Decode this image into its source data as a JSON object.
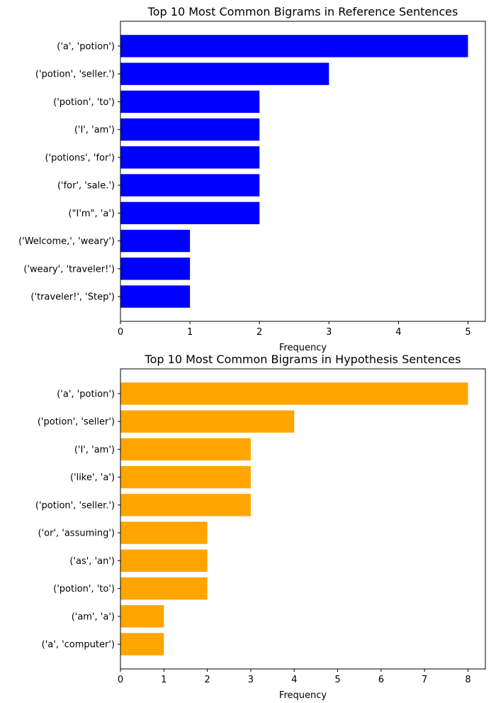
{
  "chart_data": [
    {
      "type": "bar",
      "orientation": "horizontal",
      "title": "Top 10 Most Common Bigrams in Reference Sentences",
      "xlabel": "Frequency",
      "ylabel": "",
      "color": "#0000ff",
      "xlim": [
        0,
        5.25
      ],
      "xticks": [
        0,
        1,
        2,
        3,
        4,
        5
      ],
      "categories": [
        "('a', 'potion')",
        "('potion', 'seller.')",
        "('potion', 'to')",
        "('I', 'am')",
        "('potions', 'for')",
        "('for', 'sale.')",
        "(\"I'm\", 'a')",
        "('Welcome,', 'weary')",
        "('weary', 'traveler!')",
        "('traveler!', 'Step')"
      ],
      "values": [
        5,
        3,
        2,
        2,
        2,
        2,
        2,
        1,
        1,
        1
      ]
    },
    {
      "type": "bar",
      "orientation": "horizontal",
      "title": "Top 10 Most Common Bigrams in Hypothesis Sentences",
      "xlabel": "Frequency",
      "ylabel": "",
      "color": "#ffa500",
      "xlim": [
        0,
        8.4
      ],
      "xticks": [
        0,
        1,
        2,
        3,
        4,
        5,
        6,
        7,
        8
      ],
      "categories": [
        "('a', 'potion')",
        "('potion', 'seller')",
        "('I', 'am')",
        "('like', 'a')",
        "('potion', 'seller.')",
        "('or', 'assuming')",
        "('as', 'an')",
        "('potion', 'to')",
        "('am', 'a')",
        "('a', 'computer')"
      ],
      "values": [
        8,
        4,
        3,
        3,
        3,
        2,
        2,
        2,
        1,
        1
      ]
    }
  ]
}
